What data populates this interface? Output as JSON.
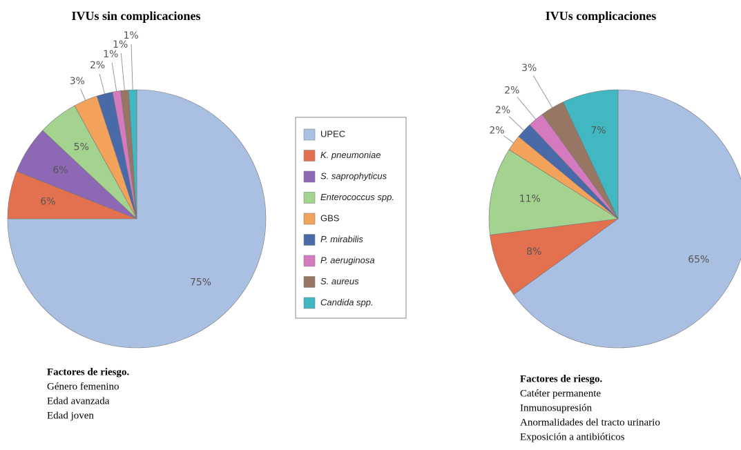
{
  "chart_data": [
    {
      "type": "pie",
      "title": "IVUs sin complicaciones",
      "categories": [
        "UPEC",
        "K. pneumoniae",
        "S. saprophyticus",
        "Enterococcus spp.",
        "GBS",
        "P. mirabilis",
        "P. aeruginosa",
        "S. aureus",
        "Candida spp."
      ],
      "values": [
        75,
        6,
        6,
        5,
        3,
        2,
        1,
        1,
        1
      ],
      "value_labels": [
        "75%",
        "6%",
        "6%",
        "5%",
        "3%",
        "2%",
        "1%",
        "1%",
        "1%"
      ],
      "colors": [
        "#a9c0e2",
        "#e3704f",
        "#8d68b4",
        "#a4d28f",
        "#f3a25b",
        "#4a69a8",
        "#d57abf",
        "#977763",
        "#40b7c1"
      ],
      "notes": {
        "heading": "Factores de riesgo.",
        "items": [
          "Género femenino",
          "Edad avanzada",
          "Edad joven"
        ]
      }
    },
    {
      "type": "pie",
      "title": "IVUs complicaciones",
      "categories": [
        "UPEC",
        "K. pneumoniae",
        "Enterococcus spp.",
        "GBS",
        "P. mirabilis",
        "P. aeruginosa",
        "S. aureus",
        "Candida spp."
      ],
      "values": [
        65,
        8,
        11,
        2,
        2,
        2,
        3,
        7
      ],
      "value_labels": [
        "65%",
        "8%",
        "11%",
        "2%",
        "2%",
        "2%",
        "3%",
        "7%"
      ],
      "colors": [
        "#a9c0e2",
        "#e3704f",
        "#a4d28f",
        "#f3a25b",
        "#4a69a8",
        "#d57abf",
        "#977763",
        "#40b7c1"
      ],
      "notes": {
        "heading": "Factores de riesgo.",
        "items": [
          "Catéter permanente",
          "Inmunosupresión",
          "Anormalidades del tracto urinario",
          "Exposición a antibióticos"
        ]
      }
    }
  ]
}
